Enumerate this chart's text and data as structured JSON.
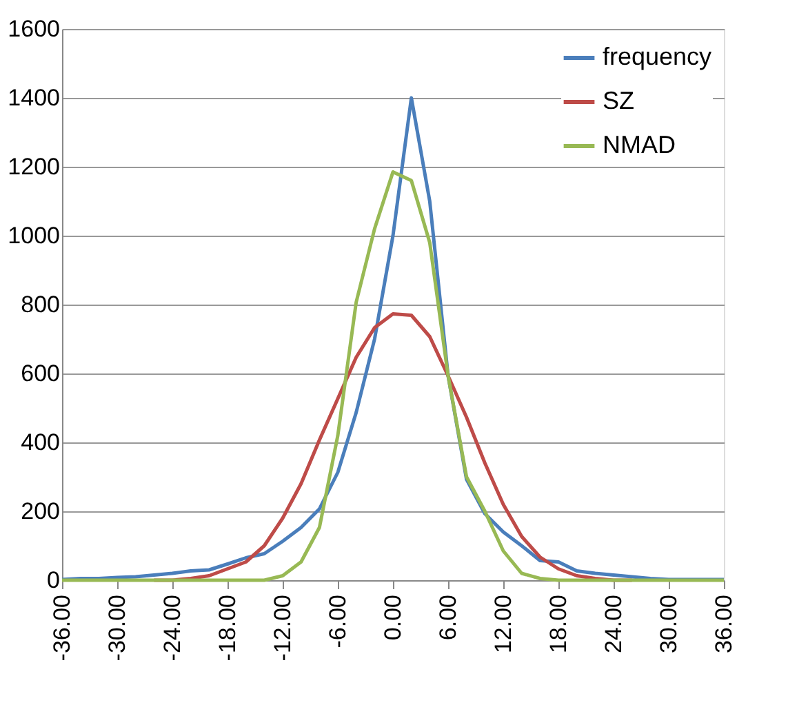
{
  "chart_data": {
    "type": "line",
    "x": [
      -36,
      -34,
      -32,
      -30,
      -28,
      -26,
      -24,
      -22,
      -20,
      -18,
      -16,
      -14,
      -12,
      -10,
      -8,
      -6,
      -4,
      -2,
      0,
      2,
      4,
      6,
      8,
      10,
      12,
      14,
      16,
      18,
      20,
      22,
      24,
      26,
      28,
      30,
      32,
      34,
      36
    ],
    "series": [
      {
        "name": "frequency",
        "color": "#4a7ebb",
        "values": [
          2,
          5,
          5,
          8,
          10,
          15,
          20,
          27,
          30,
          47,
          65,
          77,
          113,
          153,
          207,
          313,
          487,
          700,
          1000,
          1400,
          1100,
          593,
          293,
          193,
          140,
          100,
          57,
          53,
          27,
          20,
          15,
          10,
          5,
          2,
          2,
          2,
          2
        ]
      },
      {
        "name": "SZ",
        "color": "#be4b48",
        "values": [
          null,
          null,
          null,
          null,
          null,
          0,
          0,
          5,
          13,
          33,
          53,
          100,
          180,
          280,
          407,
          527,
          647,
          733,
          773,
          769,
          707,
          593,
          473,
          340,
          220,
          127,
          67,
          33,
          13,
          5,
          0,
          0,
          null,
          null,
          null,
          null,
          null
        ]
      },
      {
        "name": "NMAD",
        "color": "#98b954",
        "values": [
          0,
          0,
          0,
          0,
          0,
          0,
          0,
          0,
          0,
          0,
          0,
          0,
          13,
          53,
          153,
          420,
          807,
          1020,
          1185,
          1160,
          980,
          593,
          300,
          200,
          85,
          20,
          5,
          0,
          0,
          0,
          0,
          0,
          0,
          0,
          0,
          0,
          0
        ]
      }
    ],
    "xlim": [
      -36,
      36
    ],
    "xticks": [
      {
        "value": -36,
        "label": "-36.00"
      },
      {
        "value": -30,
        "label": "-30.00"
      },
      {
        "value": -24,
        "label": "-24.00"
      },
      {
        "value": -18,
        "label": "-18.00"
      },
      {
        "value": -12,
        "label": "-12.00"
      },
      {
        "value": -6,
        "label": "-6.00"
      },
      {
        "value": 0,
        "label": "0.00"
      },
      {
        "value": 6,
        "label": "6.00"
      },
      {
        "value": 12,
        "label": "12.00"
      },
      {
        "value": 18,
        "label": "18.00"
      },
      {
        "value": 24,
        "label": "24.00"
      },
      {
        "value": 30,
        "label": "30.00"
      },
      {
        "value": 36,
        "label": "36.00"
      }
    ],
    "ylim": [
      0,
      1600
    ],
    "yticks": [
      0,
      200,
      400,
      600,
      800,
      1000,
      1200,
      1400,
      1600
    ],
    "grid": "y",
    "legend": "top right",
    "marker": "none",
    "line_style": "solid"
  }
}
